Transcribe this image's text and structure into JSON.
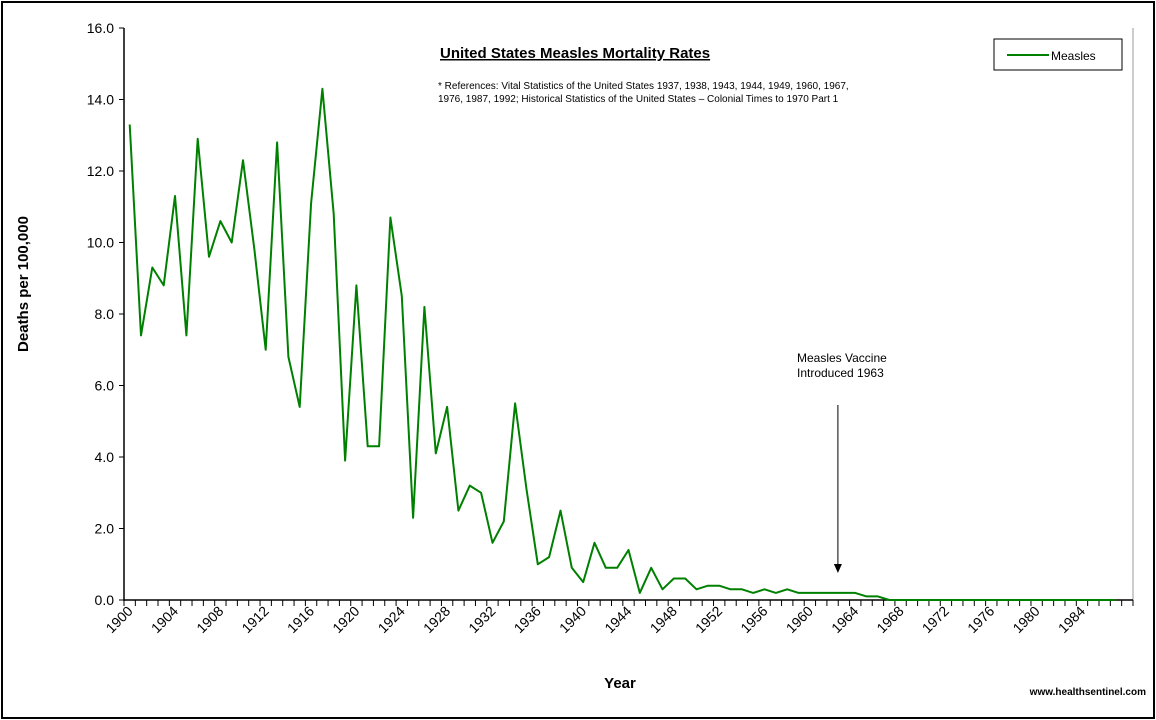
{
  "chart_data": {
    "type": "line",
    "title": "United States Measles Mortality  Rates",
    "subtitle": [
      "* References: Vital Statistics of the United States 1937, 1938, 1943, 1944, 1949, 1960, 1967,",
      "1976, 1987, 1992; Historical Statistics of the United States – Colonial Times to 1970 Part 1"
    ],
    "xlabel": "Year",
    "ylabel": "Deaths per 100,000",
    "ylim": [
      0,
      16
    ],
    "y_ticks": [
      "0.0",
      "2.0",
      "4.0",
      "6.0",
      "8.0",
      "10.0",
      "12.0",
      "14.0",
      "16.0"
    ],
    "x_tick_labels": [
      "1900",
      "1904",
      "1908",
      "1912",
      "1916",
      "1920",
      "1924",
      "1928",
      "1932",
      "1936",
      "1940",
      "1944",
      "1948",
      "1952",
      "1956",
      "1960",
      "1964",
      "1968",
      "1972",
      "1976",
      "1980",
      "1984"
    ],
    "legend_position": "top-right",
    "grid": false,
    "series": [
      {
        "name": "Measles",
        "color": "#008000",
        "x": [
          1900,
          1901,
          1902,
          1903,
          1904,
          1905,
          1906,
          1907,
          1908,
          1909,
          1910,
          1911,
          1912,
          1913,
          1914,
          1915,
          1916,
          1917,
          1918,
          1919,
          1920,
          1921,
          1922,
          1923,
          1924,
          1925,
          1926,
          1927,
          1928,
          1929,
          1930,
          1931,
          1932,
          1933,
          1934,
          1935,
          1936,
          1937,
          1938,
          1939,
          1940,
          1941,
          1942,
          1943,
          1944,
          1945,
          1946,
          1947,
          1948,
          1949,
          1950,
          1951,
          1952,
          1953,
          1954,
          1955,
          1956,
          1957,
          1958,
          1959,
          1960,
          1961,
          1962,
          1963,
          1964,
          1965,
          1966,
          1967,
          1968,
          1969,
          1970,
          1971,
          1972,
          1973,
          1974,
          1975,
          1976,
          1977,
          1978,
          1979,
          1980,
          1981,
          1982,
          1983,
          1984,
          1985,
          1986,
          1987
        ],
        "values": [
          13.3,
          7.4,
          9.3,
          8.8,
          11.3,
          7.4,
          12.9,
          9.6,
          10.6,
          10.0,
          12.3,
          9.8,
          7.0,
          12.8,
          6.8,
          5.4,
          11.1,
          14.3,
          10.8,
          3.9,
          8.8,
          4.3,
          4.3,
          10.7,
          8.5,
          2.3,
          8.2,
          4.1,
          5.4,
          2.5,
          3.2,
          3.0,
          1.6,
          2.2,
          5.5,
          3.1,
          1.0,
          1.2,
          2.5,
          0.9,
          0.5,
          1.6,
          0.9,
          0.9,
          1.4,
          0.2,
          0.9,
          0.3,
          0.6,
          0.6,
          0.3,
          0.4,
          0.4,
          0.3,
          0.3,
          0.2,
          0.3,
          0.2,
          0.3,
          0.2,
          0.2,
          0.2,
          0.2,
          0.2,
          0.2,
          0.1,
          0.1,
          0.0,
          0.0,
          0.0,
          0.0,
          0.0,
          0.0,
          0.0,
          0.0,
          0.0,
          0.0,
          0.0,
          0.0,
          0.0,
          0.0,
          0.0,
          0.0,
          0.0,
          0.0,
          0.0,
          0.0,
          0.0
        ]
      }
    ],
    "annotations": [
      {
        "text": [
          "Measles Vaccine",
          "Introduced 1963"
        ],
        "x": 1963
      }
    ]
  },
  "footer": "www.healthsentinel.com"
}
